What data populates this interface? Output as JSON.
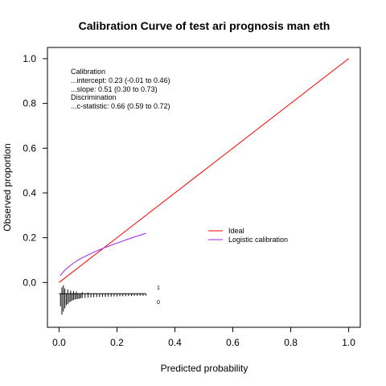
{
  "chart_data": {
    "type": "line",
    "title": "Calibration Curve of test ari prognosis man eth",
    "xlabel": "Predicted probability",
    "ylabel": "Observed proportion",
    "xlim": [
      -0.04,
      1.04
    ],
    "ylim": [
      -0.2,
      1.05
    ],
    "x_ticks": [
      "0.0",
      "0.2",
      "0.4",
      "0.6",
      "0.8",
      "1.0"
    ],
    "y_ticks": [
      "0.0",
      "0.2",
      "0.4",
      "0.6",
      "0.8",
      "1.0"
    ],
    "grid": false,
    "legend_position": "right",
    "annotations": [
      "Calibration",
      "...intercept: 0.23 (-0.01 to 0.46)",
      "...slope: 0.51 (0.30 to 0.73)",
      "Discrimination",
      "...c-statistic: 0.66 (0.59 to 0.72)"
    ],
    "series": [
      {
        "name": "Ideal",
        "color": "#ff0000",
        "x": [
          0.0,
          1.0
        ],
        "y": [
          0.0,
          1.0
        ]
      },
      {
        "name": "Logistic calibration",
        "color": "#a020f0",
        "x": [
          0.005,
          0.01,
          0.02,
          0.03,
          0.05,
          0.07,
          0.1,
          0.13,
          0.16,
          0.2,
          0.25,
          0.3
        ],
        "y": [
          0.03,
          0.04,
          0.055,
          0.067,
          0.087,
          0.103,
          0.123,
          0.141,
          0.157,
          0.176,
          0.199,
          0.22
        ]
      }
    ],
    "distribution": {
      "labels": [
        "1",
        "0"
      ],
      "events_x": [
        0.01,
        0.015,
        0.02,
        0.03,
        0.04,
        0.05,
        0.06,
        0.08,
        0.1
      ],
      "events_h": [
        0.3,
        0.4,
        0.25,
        0.2,
        0.15,
        0.12,
        0.1,
        0.08,
        0.06
      ],
      "nonevents_x": [
        0.005,
        0.01,
        0.015,
        0.02,
        0.025,
        0.03,
        0.035,
        0.04,
        0.045,
        0.05,
        0.055,
        0.06,
        0.065,
        0.07,
        0.075,
        0.08,
        0.09,
        0.1,
        0.11,
        0.12,
        0.13,
        0.14,
        0.15,
        0.16,
        0.17,
        0.18,
        0.19,
        0.2,
        0.21,
        0.22,
        0.23,
        0.24,
        0.25,
        0.26,
        0.27,
        0.28,
        0.29,
        0.3
      ],
      "nonevents_h": [
        0.6,
        1.0,
        0.85,
        0.7,
        0.55,
        0.5,
        0.42,
        0.38,
        0.34,
        0.3,
        0.28,
        0.26,
        0.25,
        0.24,
        0.22,
        0.2,
        0.2,
        0.19,
        0.18,
        0.17,
        0.16,
        0.16,
        0.15,
        0.15,
        0.14,
        0.14,
        0.13,
        0.13,
        0.12,
        0.12,
        0.12,
        0.11,
        0.11,
        0.1,
        0.1,
        0.1,
        0.1,
        0.09
      ]
    }
  }
}
